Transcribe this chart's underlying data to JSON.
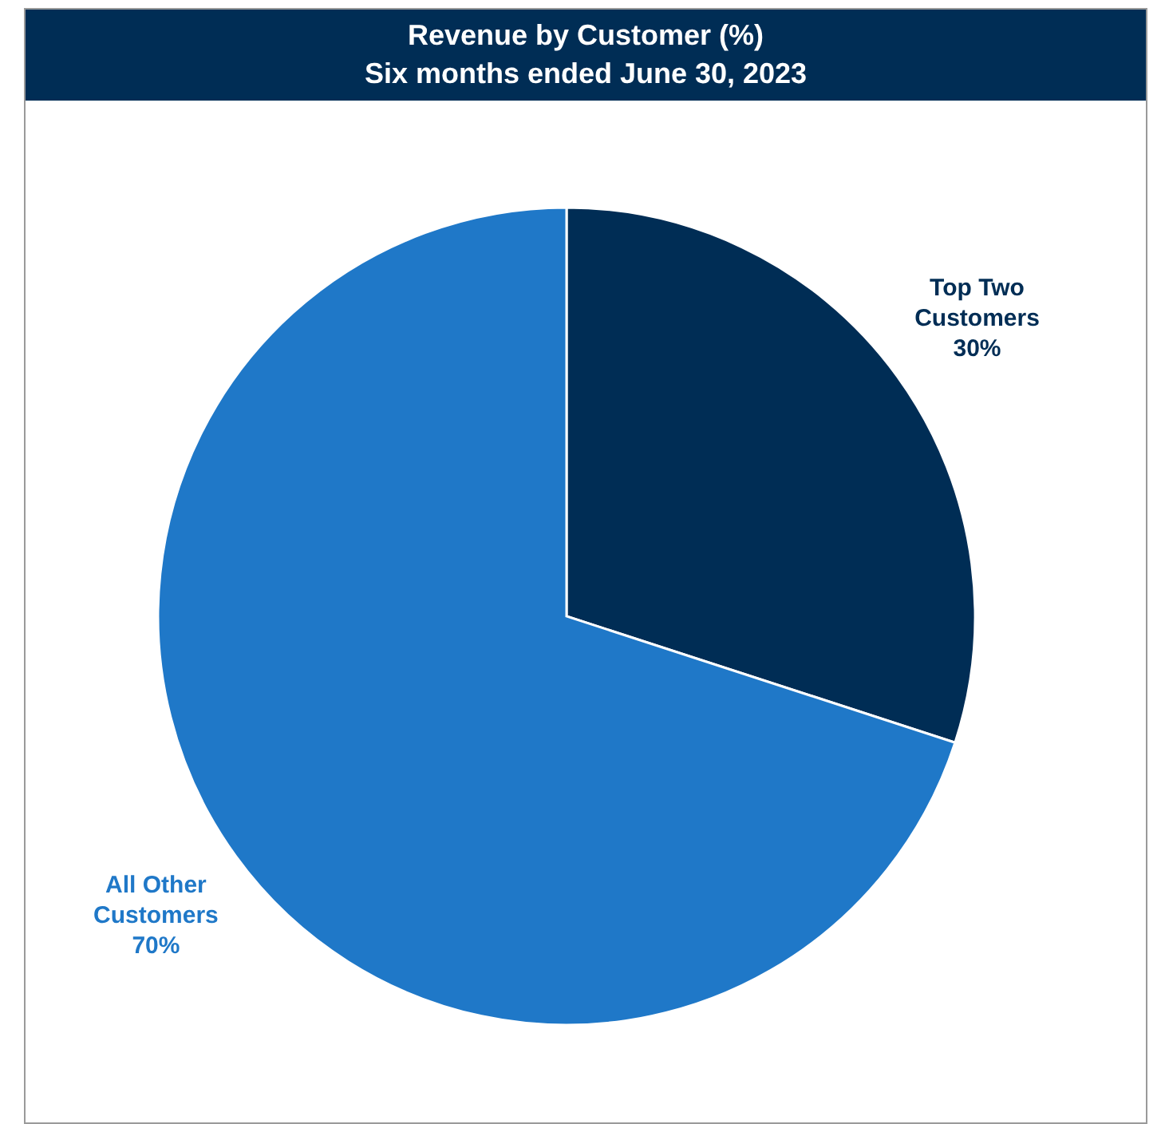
{
  "chart_data": {
    "type": "pie",
    "title": "Revenue by Customer (%)",
    "subtitle": "Six months ended June 30, 2023",
    "categories": [
      "Top Two Customers",
      "All Other Customers"
    ],
    "values": [
      30,
      70
    ],
    "colors": [
      "#002d55",
      "#1f78c8"
    ],
    "value_labels": [
      "30%",
      "70%"
    ],
    "legend": false
  }
}
